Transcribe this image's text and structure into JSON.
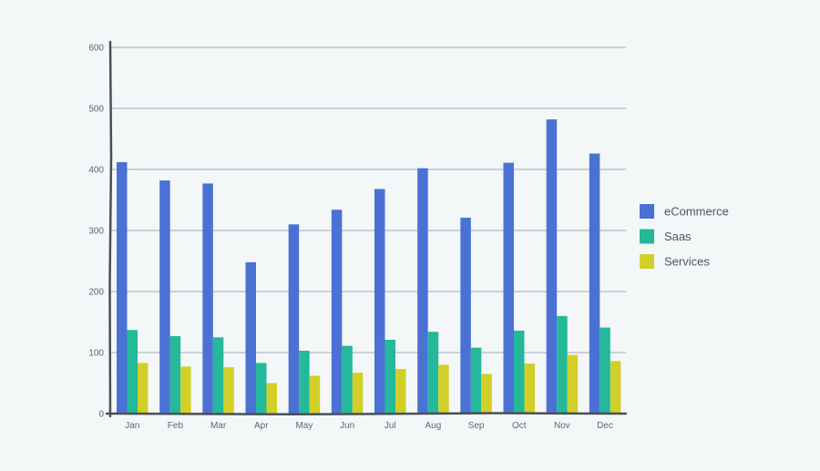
{
  "chart_data": {
    "type": "bar",
    "title": "",
    "xlabel": "",
    "ylabel": "",
    "ylim": [
      0,
      600
    ],
    "yticks": [
      0,
      100,
      200,
      300,
      400,
      500,
      600
    ],
    "categories": [
      "Jan",
      "Feb",
      "Mar",
      "Apr",
      "May",
      "Jun",
      "Jul",
      "Aug",
      "Sep",
      "Oct",
      "Nov",
      "Dec"
    ],
    "series": [
      {
        "name": "eCommerce",
        "color": "#4a72d5",
        "values": [
          412,
          382,
          377,
          248,
          310,
          334,
          368,
          402,
          321,
          411,
          482,
          426
        ]
      },
      {
        "name": "Saas",
        "color": "#23b99a",
        "values": [
          137,
          127,
          125,
          83,
          103,
          111,
          121,
          134,
          108,
          136,
          160,
          141
        ]
      },
      {
        "name": "Services",
        "color": "#d2cf29",
        "values": [
          83,
          77,
          76,
          50,
          62,
          67,
          73,
          80,
          65,
          82,
          96,
          86
        ]
      }
    ],
    "grid": true,
    "legend": "right"
  },
  "colors": {
    "background": "#f4f7f8",
    "grid": "#bcc4cd",
    "axis": "#4a4f57"
  }
}
